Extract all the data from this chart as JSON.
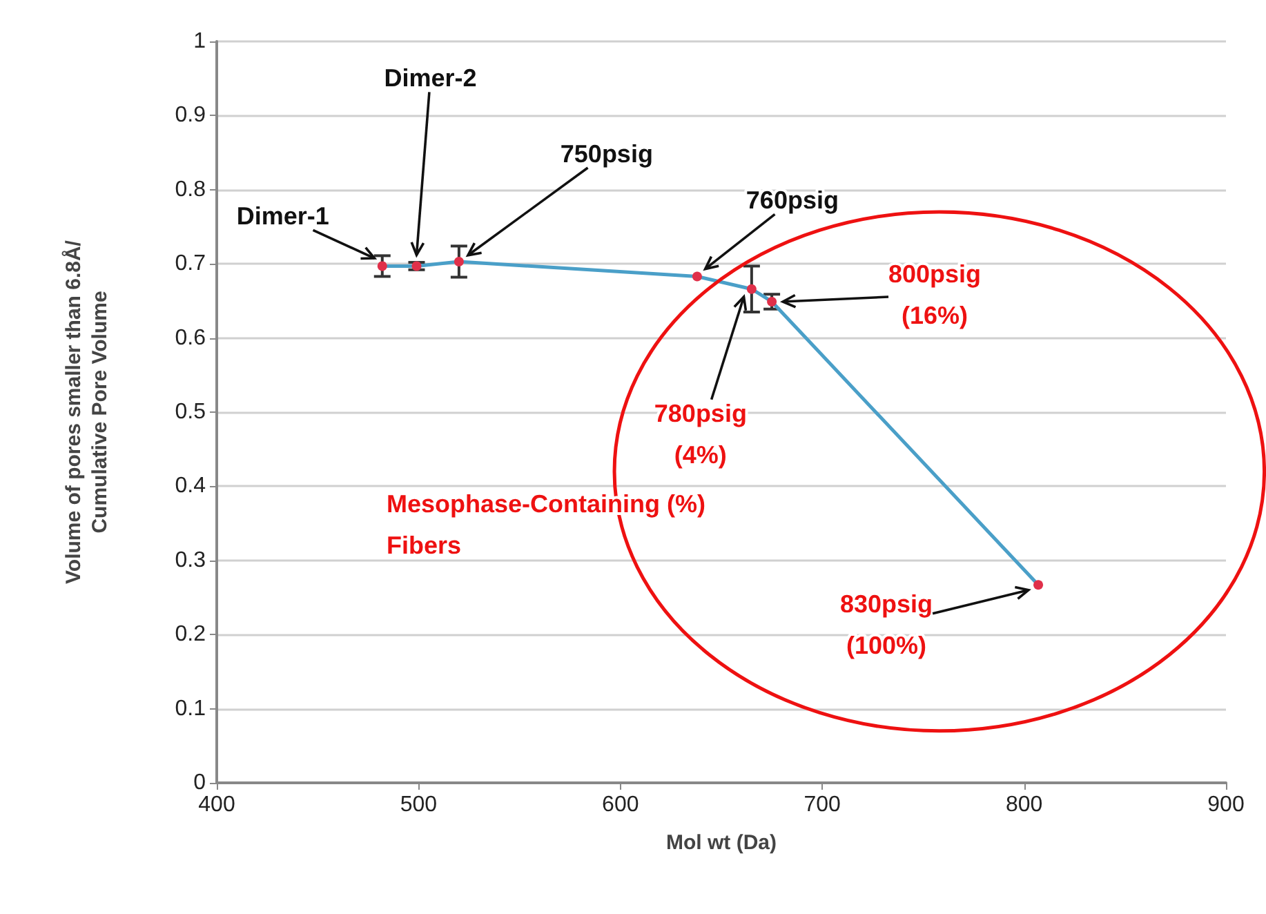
{
  "chart_data": {
    "type": "line",
    "xlabel": "Mol wt (Da)",
    "ylabel": "Volume of pores smaller than 6.8Å/\nCumulative Pore Volume",
    "x": [
      482,
      499,
      520,
      638,
      665,
      675,
      807
    ],
    "series": [
      {
        "color": "#4a9fc8",
        "values": [
          0.697,
          0.697,
          0.703,
          0.683,
          0.666,
          0.649,
          0.267
        ],
        "errors": [
          0.014,
          0.005,
          0.021,
          null,
          0.031,
          0.01,
          null
        ]
      }
    ],
    "xlim": [
      400,
      900
    ],
    "xticks": [
      400,
      500,
      600,
      700,
      800,
      900
    ],
    "ylim": [
      0,
      1
    ],
    "yticks": [
      0,
      0.1,
      0.2,
      0.3,
      0.4,
      0.5,
      0.6,
      0.7,
      0.8,
      0.9,
      1
    ],
    "grid": "y",
    "marker": "circle",
    "line_style": "solid",
    "annotations": [
      {
        "text": "Dimer-1",
        "x": 482,
        "y": 0.697
      },
      {
        "text": "Dimer-2",
        "x": 499,
        "y": 0.697
      },
      {
        "text": "750psig",
        "x": 520,
        "y": 0.703
      },
      {
        "text": "760psig",
        "x": 638,
        "y": 0.683
      },
      {
        "text": "780psig\n(4%)",
        "x": 665,
        "y": 0.666
      },
      {
        "text": "800psig\n(16%)",
        "x": 675,
        "y": 0.649
      },
      {
        "text": "830psig\n(100%)",
        "x": 807,
        "y": 0.267
      },
      "Mesophase-Containing (%)\nFibers"
    ]
  }
}
